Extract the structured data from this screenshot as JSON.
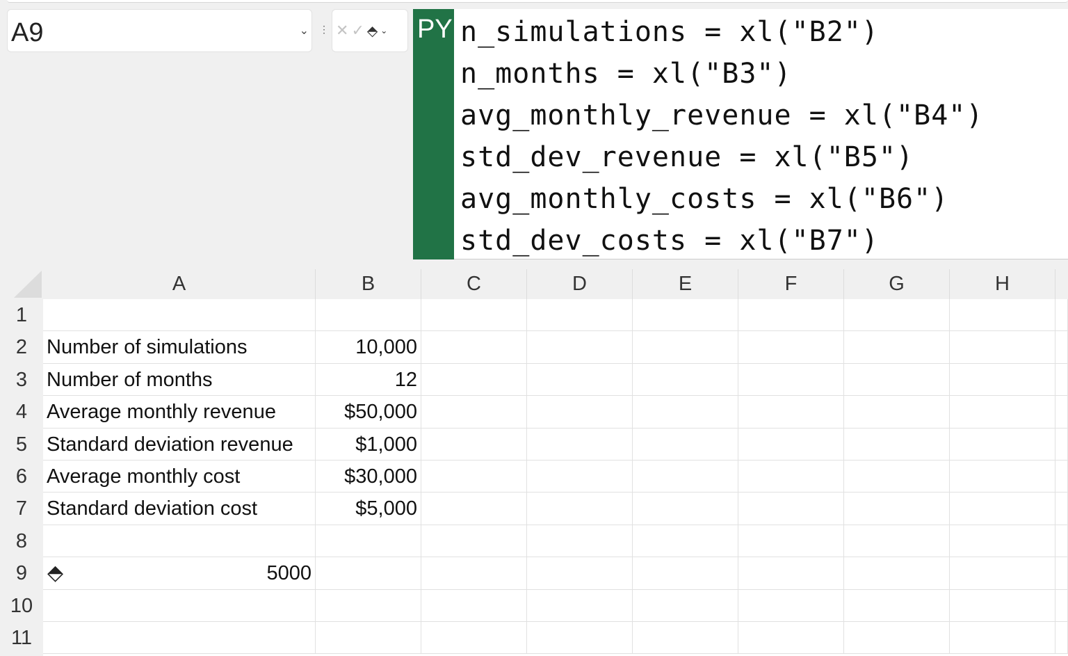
{
  "name_box": {
    "value": "A9"
  },
  "formula_bar": {
    "cancel_icon": "x-icon",
    "enter_icon": "check-icon",
    "python_mode_icon": "layers-icon",
    "py_badge": "PY",
    "code_lines": [
      "n_simulations = xl(\"B2\")",
      "n_months = xl(\"B3\")",
      "avg_monthly_revenue = xl(\"B4\")",
      "std_dev_revenue = xl(\"B5\")",
      "avg_monthly_costs = xl(\"B6\")",
      "std_dev_costs = xl(\"B7\")"
    ]
  },
  "columns": [
    "A",
    "B",
    "C",
    "D",
    "E",
    "F",
    "G",
    "H"
  ],
  "rows": [
    "1",
    "2",
    "3",
    "4",
    "5",
    "6",
    "7",
    "8",
    "9",
    "10",
    "11"
  ],
  "cells": {
    "A2": "Number of simulations",
    "B2": "10,000",
    "A3": "Number of months",
    "B3": "12",
    "A4": "Average monthly revenue",
    "B4": "$50,000",
    "A5": "Standard deviation revenue",
    "B5": "$1,000",
    "A6": "Average monthly cost",
    "B6": "$30,000",
    "A7": "Standard deviation cost",
    "B7": "$5,000",
    "A9": "5000"
  },
  "colors": {
    "python_green": "#217346"
  }
}
